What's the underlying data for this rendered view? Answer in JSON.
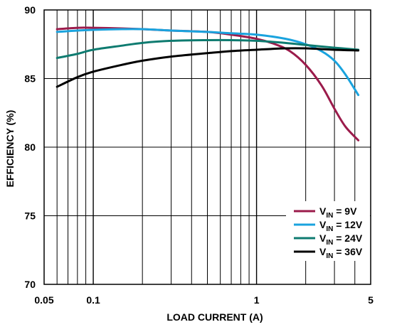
{
  "chart_data": {
    "type": "line",
    "xlabel": "LOAD CURRENT (A)",
    "ylabel": "EFFICIENCY (%)",
    "xscale": "log",
    "xlim": [
      0.05,
      5
    ],
    "ylim": [
      70,
      90
    ],
    "x_ticks": [
      {
        "value": 0.05,
        "label": "0.05"
      },
      {
        "value": 0.1,
        "label": "0.1"
      },
      {
        "value": 1,
        "label": "1"
      },
      {
        "value": 5,
        "label": "5"
      }
    ],
    "y_ticks": [
      {
        "value": 70,
        "label": "70"
      },
      {
        "value": 75,
        "label": "75"
      },
      {
        "value": 80,
        "label": "80"
      },
      {
        "value": 85,
        "label": "85"
      },
      {
        "value": 90,
        "label": "90"
      }
    ],
    "grid": true,
    "legend_position": "lower-right",
    "series": [
      {
        "name_main": "V",
        "name_sub": "IN",
        "name_rest": " = 9V",
        "color": "#9b1b4b",
        "x": [
          0.06,
          0.08,
          0.1,
          0.15,
          0.2,
          0.3,
          0.5,
          0.7,
          1,
          1.3,
          1.6,
          2,
          2.5,
          3,
          3.5,
          4.2
        ],
        "y": [
          88.6,
          88.7,
          88.7,
          88.65,
          88.6,
          88.5,
          88.4,
          88.2,
          87.9,
          87.5,
          87.0,
          86.0,
          84.5,
          82.8,
          81.5,
          80.5
        ]
      },
      {
        "name_main": "V",
        "name_sub": "IN",
        "name_rest": " = 12V",
        "color": "#1aa3de",
        "x": [
          0.06,
          0.08,
          0.1,
          0.15,
          0.2,
          0.3,
          0.5,
          0.7,
          1,
          1.5,
          2,
          2.5,
          3,
          3.5,
          4.2
        ],
        "y": [
          88.4,
          88.5,
          88.55,
          88.6,
          88.6,
          88.5,
          88.4,
          88.3,
          88.2,
          87.9,
          87.5,
          87.0,
          86.3,
          85.3,
          83.8
        ]
      },
      {
        "name_main": "V",
        "name_sub": "IN",
        "name_rest": " = 24V",
        "color": "#0e7b70",
        "x": [
          0.06,
          0.08,
          0.1,
          0.15,
          0.2,
          0.3,
          0.5,
          0.7,
          1,
          1.5,
          2,
          3,
          4.2
        ],
        "y": [
          86.5,
          86.8,
          87.1,
          87.4,
          87.6,
          87.75,
          87.8,
          87.8,
          87.75,
          87.6,
          87.45,
          87.25,
          87.1
        ]
      },
      {
        "name_main": "V",
        "name_sub": "IN",
        "name_rest": " = 36V",
        "color": "#000000",
        "x": [
          0.06,
          0.08,
          0.1,
          0.15,
          0.2,
          0.3,
          0.5,
          0.7,
          1,
          1.5,
          2,
          3,
          4.2
        ],
        "y": [
          84.4,
          85.1,
          85.5,
          86.0,
          86.3,
          86.6,
          86.85,
          87.0,
          87.1,
          87.2,
          87.2,
          87.1,
          87.05
        ]
      }
    ]
  }
}
